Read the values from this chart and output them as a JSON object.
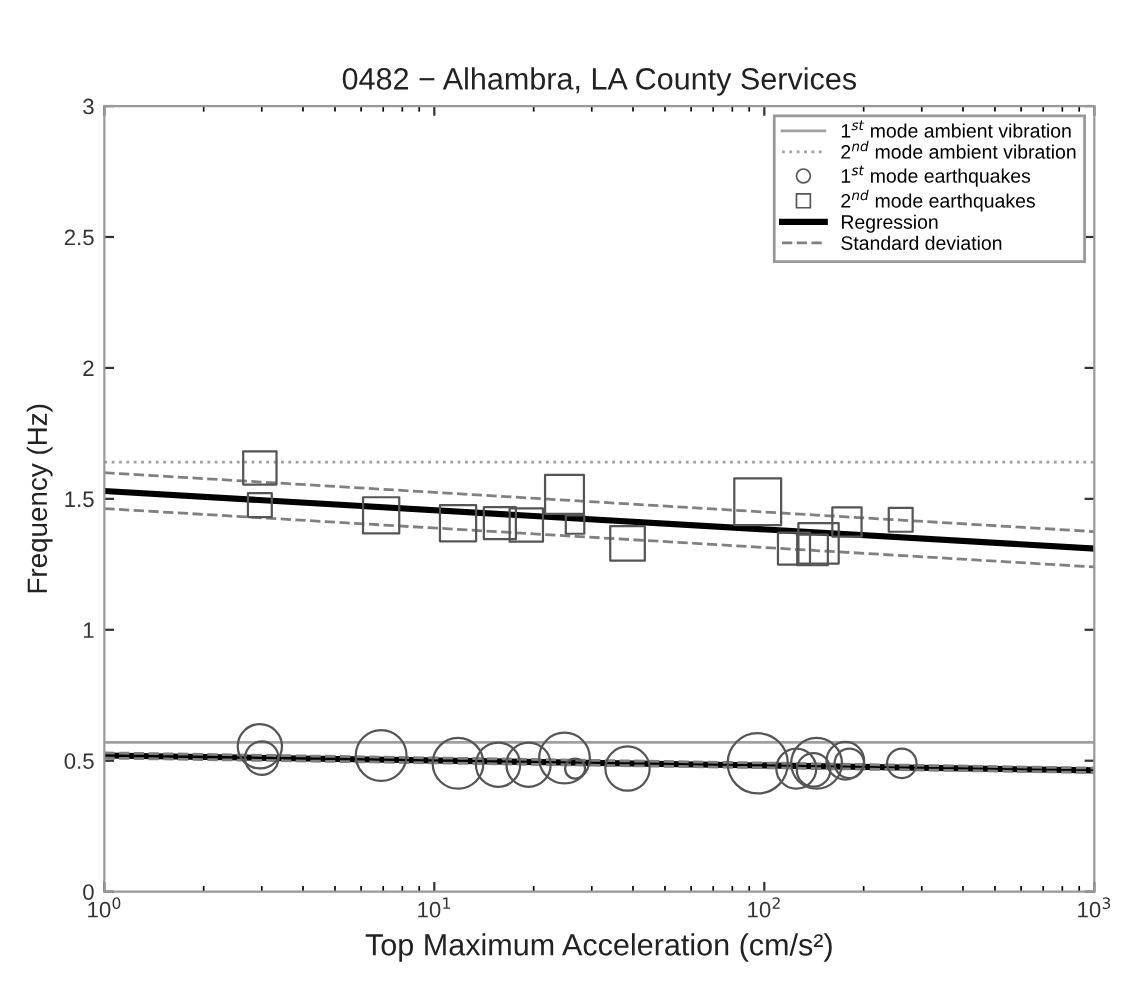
{
  "chart_data": {
    "type": "bubble",
    "title": "0482 − Alhambra, LA County Services",
    "xlabel": "Top Maximum Acceleration (cm/s²)",
    "ylabel": "Frequency (Hz)",
    "log": "x",
    "xlim": [
      1,
      1000
    ],
    "ylim": [
      0,
      3
    ],
    "xticks": [
      {
        "value": 1,
        "label": "10$^{0}$"
      },
      {
        "value": 10,
        "label": "10$^{1}$"
      },
      {
        "value": 100,
        "label": "10$^{2}$"
      },
      {
        "value": 1000,
        "label": "10$^{3}$"
      }
    ],
    "yticks": [
      0,
      0.5,
      1,
      1.5,
      2,
      2.5,
      3
    ],
    "grid": false,
    "legend": "top right",
    "series": [
      {
        "name": "1$^{st}$ mode ambient vibration",
        "type": "line",
        "line_style": "solid",
        "color": "#a0a0a0",
        "x": [
          1,
          1000
        ],
        "values": [
          0.57,
          0.57
        ]
      },
      {
        "name": "2$^{nd}$ mode ambient vibration",
        "type": "line",
        "line_style": "dotted",
        "color": "#a0a0a0",
        "x": [
          1,
          1000
        ],
        "values": [
          1.64,
          1.64
        ]
      },
      {
        "name": "1$^{st}$ mode earthquakes",
        "marker": "circle",
        "color": "#555555",
        "x": [
          2.96,
          3.0,
          6.9,
          11.8,
          15.6,
          19.3,
          24.8,
          26.7,
          38.5,
          95.5,
          125,
          141,
          144,
          176,
          181,
          261
        ],
        "values": [
          0.555,
          0.51,
          0.52,
          0.49,
          0.485,
          0.485,
          0.51,
          0.47,
          0.47,
          0.49,
          0.47,
          0.465,
          0.49,
          0.5,
          0.49,
          0.49
        ],
        "sizes": [
          0.54,
          0.31,
          0.71,
          0.71,
          0.54,
          0.54,
          0.71,
          0.11,
          0.54,
          1,
          0.44,
          0.31,
          0.71,
          0.39,
          0.24,
          0.24
        ]
      },
      {
        "name": "2$^{nd}$ mode earthquakes",
        "marker": "square",
        "color": "#555555",
        "x": [
          2.96,
          2.96,
          6.9,
          11.8,
          15.8,
          19,
          24.8,
          26.7,
          38.5,
          95.5,
          123,
          140,
          146,
          178,
          259
        ],
        "values": [
          1.618,
          1.476,
          1.437,
          1.407,
          1.407,
          1.4,
          1.517,
          1.402,
          1.33,
          1.489,
          1.31,
          1.305,
          1.33,
          1.412,
          1.42
        ],
        "sizes": [
          0.39,
          0.2,
          0.46,
          0.46,
          0.36,
          0.39,
          0.53,
          0.12,
          0.42,
          0.77,
          0.36,
          0.33,
          0.57,
          0.3,
          0.2
        ]
      },
      {
        "name": "Regression",
        "type": "line",
        "line_style": "solid",
        "color": "#000000",
        "x": [
          1,
          1000
        ],
        "values": [
          1.53,
          1.31
        ]
      },
      {
        "type": "line",
        "line_style": "solid",
        "color": "#000000",
        "x": [
          1,
          1000
        ],
        "values": [
          0.52,
          0.463
        ]
      },
      {
        "name": "Standard deviation",
        "type": "line",
        "line_style": "dashed",
        "color": "#808080",
        "x": [
          1,
          1000
        ],
        "values": [
          1.6,
          1.375
        ]
      },
      {
        "type": "line",
        "line_style": "dashed",
        "color": "#808080",
        "x": [
          1,
          1000
        ],
        "values": [
          1.463,
          1.24
        ]
      },
      {
        "type": "line",
        "line_style": "dashed",
        "color": "#808080",
        "x": [
          1,
          1000
        ],
        "values": [
          0.53,
          0.472
        ]
      },
      {
        "type": "line",
        "line_style": "dashed",
        "color": "#808080",
        "x": [
          1,
          1000
        ],
        "values": [
          0.51,
          0.455
        ]
      }
    ]
  }
}
